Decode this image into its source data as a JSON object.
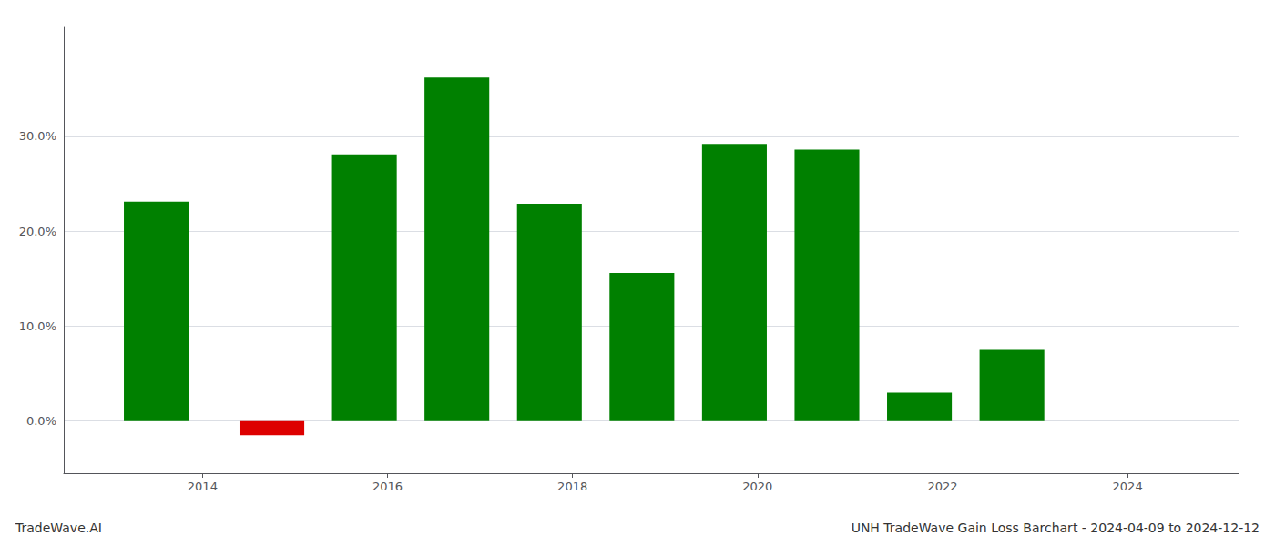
{
  "chart_data": {
    "type": "bar",
    "title": "UNH TradeWave Gain Loss Barchart - 2024-04-09 to 2024-12-12",
    "annotation": "TradeWave.AI",
    "x": [
      2013.5,
      2014.75,
      2015.75,
      2016.75,
      2017.75,
      2018.75,
      2019.75,
      2020.75,
      2021.75,
      2022.75
    ],
    "values": [
      0.231,
      -0.015,
      0.281,
      0.362,
      0.229,
      0.156,
      0.292,
      0.286,
      0.03,
      0.075
    ],
    "colors": [
      "#008000",
      "#dd0000",
      "#008000",
      "#008000",
      "#008000",
      "#008000",
      "#008000",
      "#008000",
      "#008000",
      "#008000"
    ],
    "xlim": [
      2012.5,
      2025.2
    ],
    "xticks": [
      2014,
      2016,
      2018,
      2020,
      2022,
      2024
    ],
    "ylim": [
      -0.055,
      0.415
    ],
    "yticks": [
      {
        "value": 0.0,
        "label": "0.0%"
      },
      {
        "value": 0.1,
        "label": "10.0%"
      },
      {
        "value": 0.2,
        "label": "20.0%"
      },
      {
        "value": 0.3,
        "label": "30.0%"
      }
    ],
    "grid": true
  }
}
